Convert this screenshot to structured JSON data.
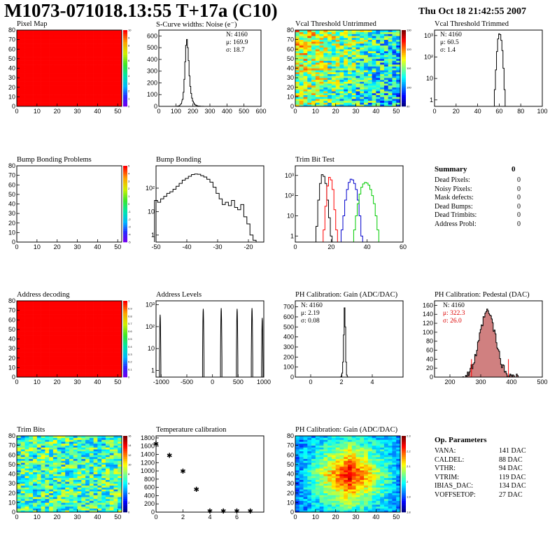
{
  "header": {
    "title": "M1073-071018.13:55 T+17a (C10)",
    "date": "Thu Oct 18 21:42:55 2007"
  },
  "colors": {
    "hist_line": "#000",
    "red": "#ff0000",
    "blue": "#0000cc",
    "green": "#00cc00",
    "pedestal_fill": "#d08080"
  },
  "panels": {
    "pixel_map": {
      "title": "Pixel Map",
      "xticks": [
        "0",
        "10",
        "20",
        "30",
        "40",
        "50"
      ],
      "yticks": [
        "0",
        "10",
        "20",
        "30",
        "40",
        "50",
        "60",
        "70",
        "80"
      ],
      "zticks": [
        "0",
        "1",
        "2",
        "3",
        "4",
        "5",
        "6",
        "7",
        "8",
        "9",
        "10"
      ]
    },
    "scurve": {
      "title": "S-Curve widths: Noise (e⁻)",
      "xticks": [
        "0",
        "100",
        "200",
        "300",
        "400",
        "500",
        "600"
      ],
      "yticks": [
        "0",
        "100",
        "200",
        "300",
        "400",
        "500",
        "600"
      ],
      "stats": {
        "n": "N: 4160",
        "mu": "μ: 169.9",
        "sigma": "σ: 18.7"
      }
    },
    "vcal_untrimmed": {
      "title": "Vcal Threshold Untrimmed",
      "xticks": [
        "0",
        "10",
        "20",
        "30",
        "40",
        "50"
      ],
      "yticks": [
        "0",
        "10",
        "20",
        "30",
        "40",
        "50",
        "60",
        "70",
        "80"
      ],
      "zticks": [
        "90",
        "100",
        "110",
        "120",
        "130"
      ]
    },
    "vcal_trimmed": {
      "title": "Vcal Threshold Trimmed",
      "xticks": [
        "0",
        "20",
        "40",
        "60",
        "80",
        "100"
      ],
      "yticks": [
        "1",
        "10",
        "10²",
        "10³"
      ],
      "stats": {
        "n": "N: 4160",
        "mu": "μ: 60.5",
        "sigma": "σ:  1.4"
      }
    },
    "bump_problems": {
      "title": "Bump Bonding Problems",
      "xticks": [
        "0",
        "10",
        "20",
        "30",
        "40",
        "50"
      ],
      "yticks": [
        "0",
        "10",
        "20",
        "30",
        "40",
        "50",
        "60",
        "70",
        "80"
      ],
      "zticks": [
        "-5",
        "-4",
        "-3",
        "-2",
        "-1",
        "0",
        "1",
        "2",
        "3",
        "4",
        "5"
      ]
    },
    "bump_bonding": {
      "title": "Bump Bonding",
      "xticks": [
        "-50",
        "-40",
        "-30",
        "-20"
      ],
      "yticks": [
        "1",
        "10",
        "10²"
      ]
    },
    "trim_bit": {
      "title": "Trim Bit Test",
      "xticks": [
        "0",
        "20",
        "40",
        "60"
      ],
      "yticks": [
        "1",
        "10",
        "10²",
        "10³"
      ]
    },
    "summary": {
      "title": "Summary",
      "title_value": "0",
      "rows": [
        {
          "label": "Dead Pixels:",
          "value": "0"
        },
        {
          "label": "Noisy Pixels:",
          "value": "0"
        },
        {
          "label": "Mask defects:",
          "value": "0"
        },
        {
          "label": "Dead Bumps:",
          "value": "0"
        },
        {
          "label": "Dead Trimbits:",
          "value": "0"
        },
        {
          "label": "Address Probl:",
          "value": "0"
        }
      ]
    },
    "address_decoding": {
      "title": "Address decoding",
      "xticks": [
        "0",
        "10",
        "20",
        "30",
        "40",
        "50"
      ],
      "yticks": [
        "0",
        "10",
        "20",
        "30",
        "40",
        "50",
        "60",
        "70",
        "80"
      ],
      "zticks": [
        "0",
        "0.1",
        "0.2",
        "0.3",
        "0.4",
        "0.5",
        "0.6",
        "0.7",
        "0.8",
        "0.9",
        "1"
      ]
    },
    "address_levels": {
      "title": "Address Levels",
      "xticks": [
        "-1000",
        "-500",
        "0",
        "500",
        "1000"
      ],
      "yticks": [
        "1",
        "10",
        "10²",
        "10³"
      ]
    },
    "ph_gain": {
      "title": "PH Calibration: Gain (ADC/DAC)",
      "xticks": [
        "0",
        "2",
        "4"
      ],
      "yticks": [
        "0",
        "100",
        "200",
        "300",
        "400",
        "500",
        "600",
        "700"
      ],
      "stats": {
        "n": "N: 4160",
        "mu": "μ: 2.19",
        "sigma": "σ: 0.08"
      }
    },
    "ph_pedestal": {
      "title": "PH Calibration: Pedestal (DAC)",
      "xticks": [
        "200",
        "300",
        "400",
        "500"
      ],
      "yticks": [
        "0",
        "20",
        "40",
        "60",
        "80",
        "100",
        "120",
        "140",
        "160"
      ],
      "stats": {
        "n": "N: 4160",
        "mu": "μ: 322.3",
        "sigma": "σ: 26.0"
      }
    },
    "trim_bits": {
      "title": "Trim Bits",
      "xticks": [
        "0",
        "10",
        "20",
        "30",
        "40",
        "50"
      ],
      "yticks": [
        "0",
        "10",
        "20",
        "30",
        "40",
        "50",
        "60",
        "70",
        "80"
      ],
      "zticks": [
        "0",
        "2",
        "4",
        "6",
        "8",
        "10",
        "12",
        "14",
        "16"
      ]
    },
    "temperature": {
      "title": "Temperature calibration",
      "xticks": [
        "0",
        "2",
        "4",
        "6"
      ],
      "yticks": [
        "0",
        "200",
        "400",
        "600",
        "800",
        "1000",
        "1200",
        "1400",
        "1600",
        "1800"
      ]
    },
    "ph_gain_map": {
      "title": "PH Calibration: Gain (ADC/DAC)",
      "xticks": [
        "0",
        "10",
        "20",
        "30",
        "40",
        "50"
      ],
      "yticks": [
        "0",
        "10",
        "20",
        "30",
        "40",
        "50",
        "60",
        "70",
        "80"
      ],
      "zticks": [
        "1.8",
        "1.9",
        "2",
        "2.1",
        "2.2",
        "2.3"
      ]
    },
    "op_params": {
      "title": "Op. Parameters",
      "rows": [
        {
          "label": "VANA:",
          "value": "141 DAC"
        },
        {
          "label": "CALDEL:",
          "value": "88 DAC"
        },
        {
          "label": "VTHR:",
          "value": "94 DAC"
        },
        {
          "label": "VTRIM:",
          "value": "119 DAC"
        },
        {
          "label": "IBIAS_DAC:",
          "value": "134 DAC"
        },
        {
          "label": "VOFFSETOP:",
          "value": "27 DAC"
        }
      ]
    }
  },
  "chart_data": [
    {
      "type": "heatmap",
      "id": "pixel_map",
      "title": "Pixel Map",
      "xlim": [
        0,
        52
      ],
      "ylim": [
        0,
        80
      ],
      "zlim": [
        0,
        10
      ],
      "uniform_value": 10
    },
    {
      "type": "histogram",
      "id": "scurve",
      "title": "S-Curve widths: Noise (e⁻)",
      "xlim": [
        0,
        600
      ],
      "ylim": [
        0,
        650
      ],
      "x": [
        110,
        120,
        130,
        140,
        145,
        150,
        155,
        160,
        165,
        170,
        175,
        180,
        185,
        190,
        195,
        200,
        205,
        210,
        215,
        220,
        225,
        230,
        240,
        250,
        260,
        270
      ],
      "values": [
        2,
        5,
        20,
        60,
        120,
        230,
        380,
        520,
        570,
        500,
        390,
        260,
        170,
        110,
        70,
        45,
        30,
        18,
        12,
        8,
        5,
        3,
        2,
        1,
        1,
        0
      ]
    },
    {
      "type": "heatmap",
      "id": "vcal_untrimmed",
      "title": "Vcal Threshold Untrimmed",
      "xlim": [
        0,
        52
      ],
      "ylim": [
        0,
        80
      ],
      "zlim": [
        85,
        135
      ],
      "pattern": "mean 112, lower toward right"
    },
    {
      "type": "histogram",
      "id": "vcal_trimmed",
      "title": "Vcal Threshold Trimmed",
      "log_y": true,
      "xlim": [
        0,
        100
      ],
      "ylim": [
        0.5,
        1800
      ],
      "x": [
        56,
        57,
        58,
        59,
        60,
        61,
        62,
        63,
        64,
        65
      ],
      "values": [
        3,
        25,
        180,
        700,
        1200,
        1100,
        600,
        200,
        30,
        3
      ]
    },
    {
      "type": "heatmap",
      "id": "bump_problems",
      "title": "Bump Bonding Problems",
      "xlim": [
        0,
        52
      ],
      "ylim": [
        0,
        80
      ],
      "zlim": [
        -5,
        5
      ],
      "uniform_value": 0
    },
    {
      "type": "histogram",
      "id": "bump_bonding",
      "title": "Bump Bonding",
      "log_y": true,
      "xlim": [
        -50,
        -15
      ],
      "ylim": [
        0.5,
        900
      ],
      "x": [
        -50,
        -49,
        -48,
        -47,
        -46,
        -45,
        -44,
        -43,
        -42,
        -41,
        -40,
        -39,
        -38,
        -37,
        -36,
        -35,
        -34,
        -33,
        -32,
        -31,
        -30,
        -29,
        -28,
        -27,
        -26,
        -25,
        -24,
        -23,
        -22,
        -21,
        -20,
        -19,
        -18
      ],
      "values": [
        30,
        25,
        35,
        45,
        60,
        70,
        90,
        120,
        160,
        220,
        260,
        320,
        380,
        400,
        390,
        340,
        300,
        240,
        180,
        110,
        60,
        35,
        20,
        25,
        18,
        30,
        15,
        12,
        20,
        6,
        3,
        1,
        0.6
      ]
    },
    {
      "type": "histogram",
      "id": "trim_bit",
      "title": "Trim Bit Test",
      "log_y": true,
      "xlim": [
        0,
        60
      ],
      "ylim": [
        0.5,
        3000
      ],
      "series": [
        {
          "color": "#000",
          "x": [
            12,
            13,
            14,
            15,
            16,
            17,
            18,
            19,
            20
          ],
          "values": [
            3,
            60,
            400,
            1100,
            900,
            400,
            60,
            8,
            1
          ]
        },
        {
          "color": "#ff0000",
          "x": [
            16,
            17,
            18,
            19,
            20,
            21,
            22,
            23
          ],
          "values": [
            2,
            30,
            300,
            800,
            600,
            200,
            20,
            2
          ]
        },
        {
          "color": "#0000cc",
          "x": [
            26,
            27,
            28,
            29,
            30,
            31,
            32,
            33,
            34,
            35,
            36,
            37
          ],
          "values": [
            2,
            10,
            60,
            200,
            450,
            650,
            600,
            400,
            200,
            60,
            10,
            1
          ]
        },
        {
          "color": "#00cc00",
          "x": [
            33,
            34,
            35,
            36,
            37,
            38,
            39,
            40,
            41,
            42,
            43,
            44,
            45,
            46
          ],
          "values": [
            2,
            10,
            40,
            120,
            260,
            380,
            450,
            420,
            330,
            200,
            100,
            40,
            10,
            2
          ]
        }
      ]
    },
    {
      "type": "heatmap",
      "id": "address_decoding",
      "title": "Address decoding",
      "xlim": [
        0,
        52
      ],
      "ylim": [
        0,
        80
      ],
      "zlim": [
        0,
        1
      ],
      "uniform_value": 1
    },
    {
      "type": "histogram",
      "id": "address_levels",
      "title": "Address Levels",
      "log_y": true,
      "xlim": [
        -1100,
        1000
      ],
      "ylim": [
        0.5,
        1500
      ],
      "peaks": [
        {
          "x": -1020,
          "h": 350
        },
        {
          "x": -180,
          "h": 650
        },
        {
          "x": 170,
          "h": 700
        },
        {
          "x": 480,
          "h": 650
        },
        {
          "x": 770,
          "h": 700
        },
        {
          "x": 970,
          "h": 250
        }
      ]
    },
    {
      "type": "histogram",
      "id": "ph_gain",
      "title": "PH Calibration: Gain (ADC/DAC)",
      "xlim": [
        -1,
        6
      ],
      "ylim": [
        0,
        760
      ],
      "x": [
        1.95,
        2.0,
        2.05,
        2.1,
        2.15,
        2.2,
        2.25,
        2.3,
        2.35,
        2.4
      ],
      "values": [
        2,
        8,
        40,
        150,
        420,
        690,
        500,
        150,
        20,
        2
      ]
    },
    {
      "type": "histogram",
      "id": "ph_pedestal",
      "title": "PH Calibration: Pedestal (DAC)",
      "xlim": [
        150,
        500
      ],
      "ylim": [
        0,
        170
      ],
      "markers": [
        270,
        390
      ],
      "mean": 322.3,
      "sigma": 26.0,
      "peak": 145
    },
    {
      "type": "heatmap",
      "id": "trim_bits",
      "title": "Trim Bits",
      "xlim": [
        0,
        52
      ],
      "ylim": [
        0,
        80
      ],
      "zlim": [
        0,
        16
      ],
      "pattern": "mean 7, noisy"
    },
    {
      "type": "scatter",
      "id": "temperature",
      "title": "Temperature calibration",
      "xlim": [
        0,
        8
      ],
      "ylim": [
        0,
        1850
      ],
      "x": [
        0,
        1,
        2,
        3,
        4,
        5,
        6,
        7
      ],
      "y": [
        1680,
        1400,
        1020,
        580,
        50,
        50,
        50,
        50
      ]
    },
    {
      "type": "heatmap",
      "id": "ph_gain_map",
      "title": "PH Calibration: Gain (ADC/DAC)",
      "xlim": [
        0,
        52
      ],
      "ylim": [
        0,
        80
      ],
      "zlim": [
        1.75,
        2.35
      ],
      "pattern": "low at edges, high in center"
    }
  ]
}
